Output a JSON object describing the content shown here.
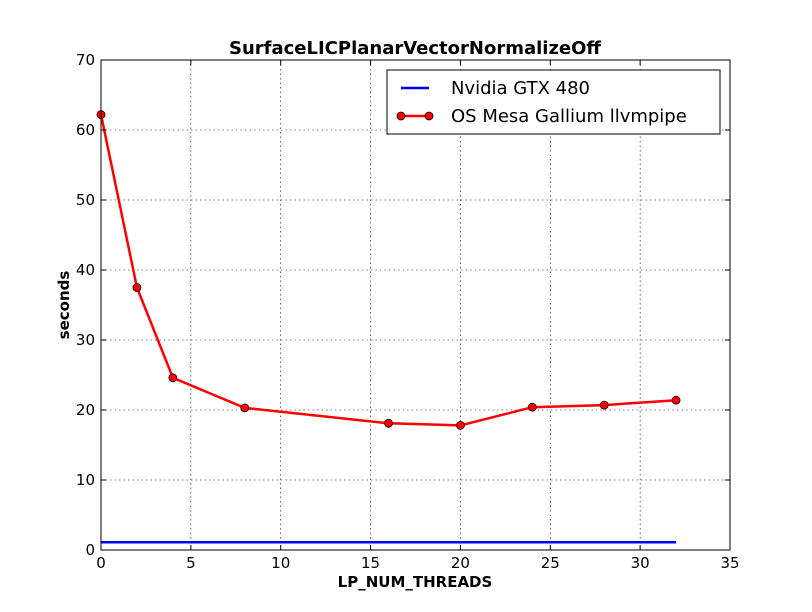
{
  "chart_data": {
    "type": "line",
    "title": "SurfaceLICPlanarVectorNormalizeOff",
    "xlabel": "LP_NUM_THREADS",
    "ylabel": "seconds",
    "xlim": [
      0,
      35
    ],
    "ylim": [
      0,
      70
    ],
    "xticks": [
      0,
      5,
      10,
      15,
      20,
      25,
      30,
      35
    ],
    "yticks": [
      0,
      10,
      20,
      30,
      40,
      50,
      60,
      70
    ],
    "grid": true,
    "legend_position": "top-right",
    "series": [
      {
        "name": "Nvidia GTX 480",
        "color": "#0000ff",
        "marker": "none",
        "x": [
          0,
          32
        ],
        "y": [
          1.1,
          1.1
        ]
      },
      {
        "name": "OS Mesa Gallium llvmpipe",
        "color": "#ff0000",
        "marker": "circle",
        "x": [
          0,
          2,
          4,
          8,
          16,
          20,
          24,
          28,
          32
        ],
        "y": [
          62.2,
          37.5,
          24.6,
          20.3,
          18.1,
          17.8,
          20.4,
          20.7,
          21.4
        ]
      }
    ]
  }
}
